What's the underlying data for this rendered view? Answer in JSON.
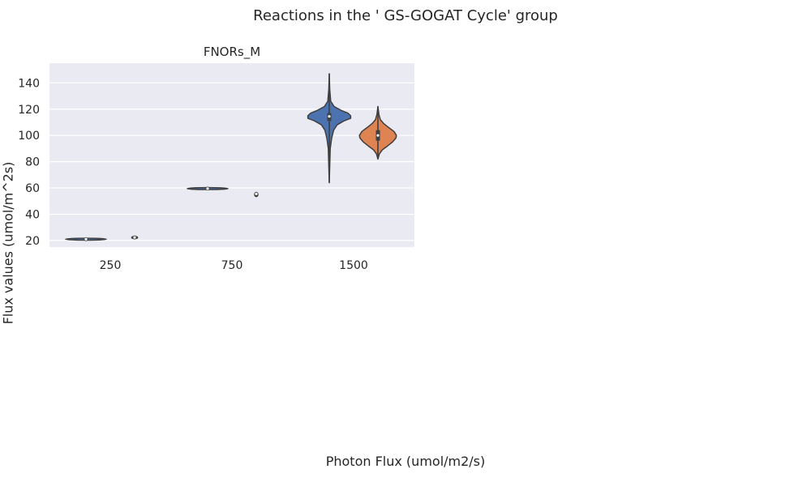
{
  "figure": {
    "title": "Reactions in the ' GS-GOGAT Cycle' group",
    "xlabel": "Photon Flux (umol/m2/s)",
    "ylabel": "Flux values (umol/m^2s)"
  },
  "colors": {
    "background": "#ffffff",
    "axes_face": "#eaeaf2",
    "grid": "#ffffff",
    "series_1": "#4c72b0",
    "series_2": "#dd8452",
    "edge": "#3f3f3f"
  },
  "chart_data": {
    "type": "violin",
    "title": "FNORs_M",
    "categories": [
      "250",
      "750",
      "1500"
    ],
    "ylim": [
      15,
      155
    ],
    "yticks": [
      20,
      40,
      60,
      80,
      100,
      120,
      140
    ],
    "grid": true,
    "legend": "none",
    "series": [
      {
        "values": [
          {
            "category": "250",
            "min": 21,
            "max": 21,
            "q1": 21,
            "median": 21,
            "q3": 21,
            "width": 0.42
          },
          {
            "category": "750",
            "min": 59.5,
            "max": 59.5,
            "q1": 59.5,
            "median": 59.5,
            "q3": 59.5,
            "width": 0.42
          },
          {
            "category": "1500",
            "min": 64,
            "max": 147,
            "q1": 111,
            "median": 114.5,
            "q3": 117,
            "profile": [
              [
                64,
                0.0
              ],
              [
                90,
                0.02
              ],
              [
                98,
                0.05
              ],
              [
                104,
                0.09
              ],
              [
                108,
                0.16
              ],
              [
                111,
                0.3
              ],
              [
                113,
                0.44
              ],
              [
                115,
                0.44
              ],
              [
                117,
                0.38
              ],
              [
                119,
                0.25
              ],
              [
                122,
                0.1
              ],
              [
                126,
                0.03
              ],
              [
                135,
                0.01
              ],
              [
                147,
                0.0
              ]
            ]
          }
        ]
      },
      {
        "values": [
          {
            "category": "250",
            "min": 21.5,
            "max": 23,
            "q1": 22,
            "median": 22.3,
            "q3": 22.6,
            "width": 0.06
          },
          {
            "category": "750",
            "min": 53.5,
            "max": 56.5,
            "q1": 54.8,
            "median": 55.5,
            "q3": 56,
            "width": 0.03
          },
          {
            "category": "1500",
            "min": 82,
            "max": 122,
            "q1": 96,
            "median": 100,
            "q3": 104,
            "profile": [
              [
                82,
                0.0
              ],
              [
                86,
                0.03
              ],
              [
                89,
                0.09
              ],
              [
                92,
                0.2
              ],
              [
                95,
                0.3
              ],
              [
                98,
                0.37
              ],
              [
                100,
                0.38
              ],
              [
                103,
                0.33
              ],
              [
                106,
                0.22
              ],
              [
                109,
                0.12
              ],
              [
                112,
                0.05
              ],
              [
                116,
                0.02
              ],
              [
                122,
                0.0
              ]
            ]
          }
        ]
      }
    ]
  }
}
